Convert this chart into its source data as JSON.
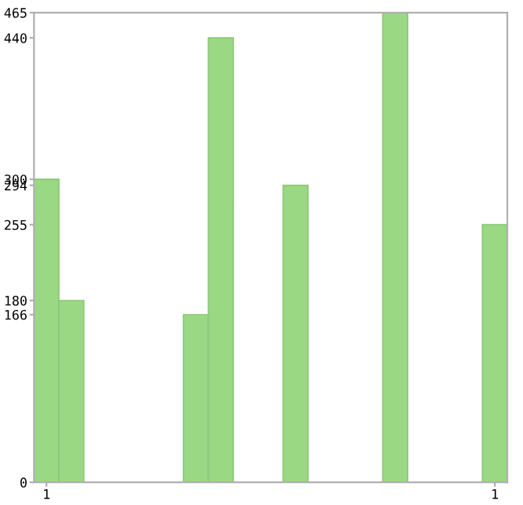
{
  "chart_data": {
    "type": "bar",
    "categories": [
      "1",
      null,
      null,
      null,
      null,
      null,
      null,
      null,
      null,
      null,
      null,
      null,
      null,
      null,
      null,
      null,
      null,
      null,
      "1"
    ],
    "values": [
      300,
      180,
      0,
      0,
      0,
      0,
      166,
      440,
      0,
      0,
      294,
      0,
      0,
      0,
      465,
      0,
      0,
      0,
      255
    ],
    "color": "#9ad884",
    "ylim": [
      0,
      465
    ],
    "yticks": [
      0,
      166,
      180,
      255,
      294,
      300,
      440,
      465
    ],
    "grid": false
  }
}
